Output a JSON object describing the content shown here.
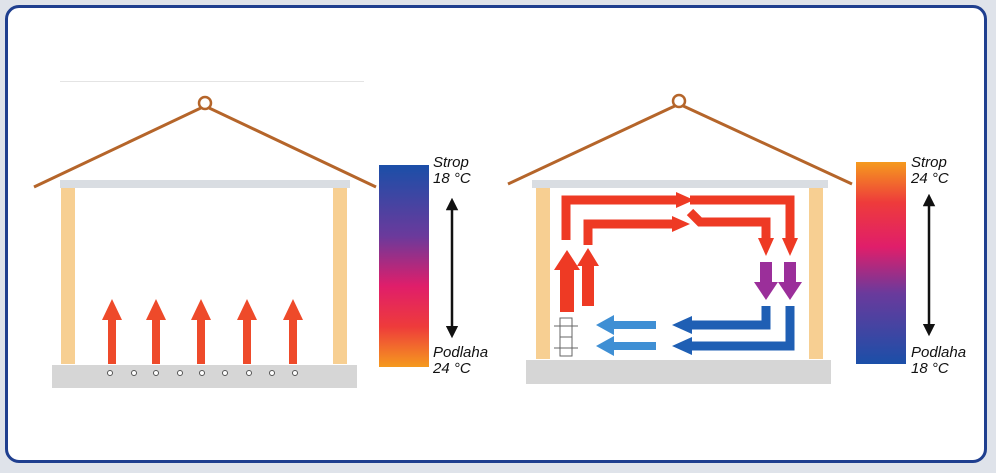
{
  "left_panel": {
    "ceiling_label": "Strop",
    "ceiling_temp": "18 °C",
    "floor_label": "Podlaha",
    "floor_temp": "24 °C",
    "gradient_top": "#1b4fa8",
    "gradient_bottom": "#f59a1e"
  },
  "right_panel": {
    "ceiling_label": "Strop",
    "ceiling_temp": "24 °C",
    "floor_label": "Podlaha",
    "floor_temp": "18 °C",
    "gradient_top": "#f59a1e",
    "gradient_bottom": "#1b4fa8"
  },
  "colors": {
    "frame": "#1f3f8f",
    "roof": "#b5652a",
    "wall": "#f7cf92",
    "floor": "#d6d6d6",
    "ceiling": "#d9dde2",
    "hot_arrow": "#ee3a24",
    "purple_arrow": "#9b2f9a",
    "cold_arrow": "#1f5fb4",
    "light_blue_arrow": "#3f8fd4"
  }
}
